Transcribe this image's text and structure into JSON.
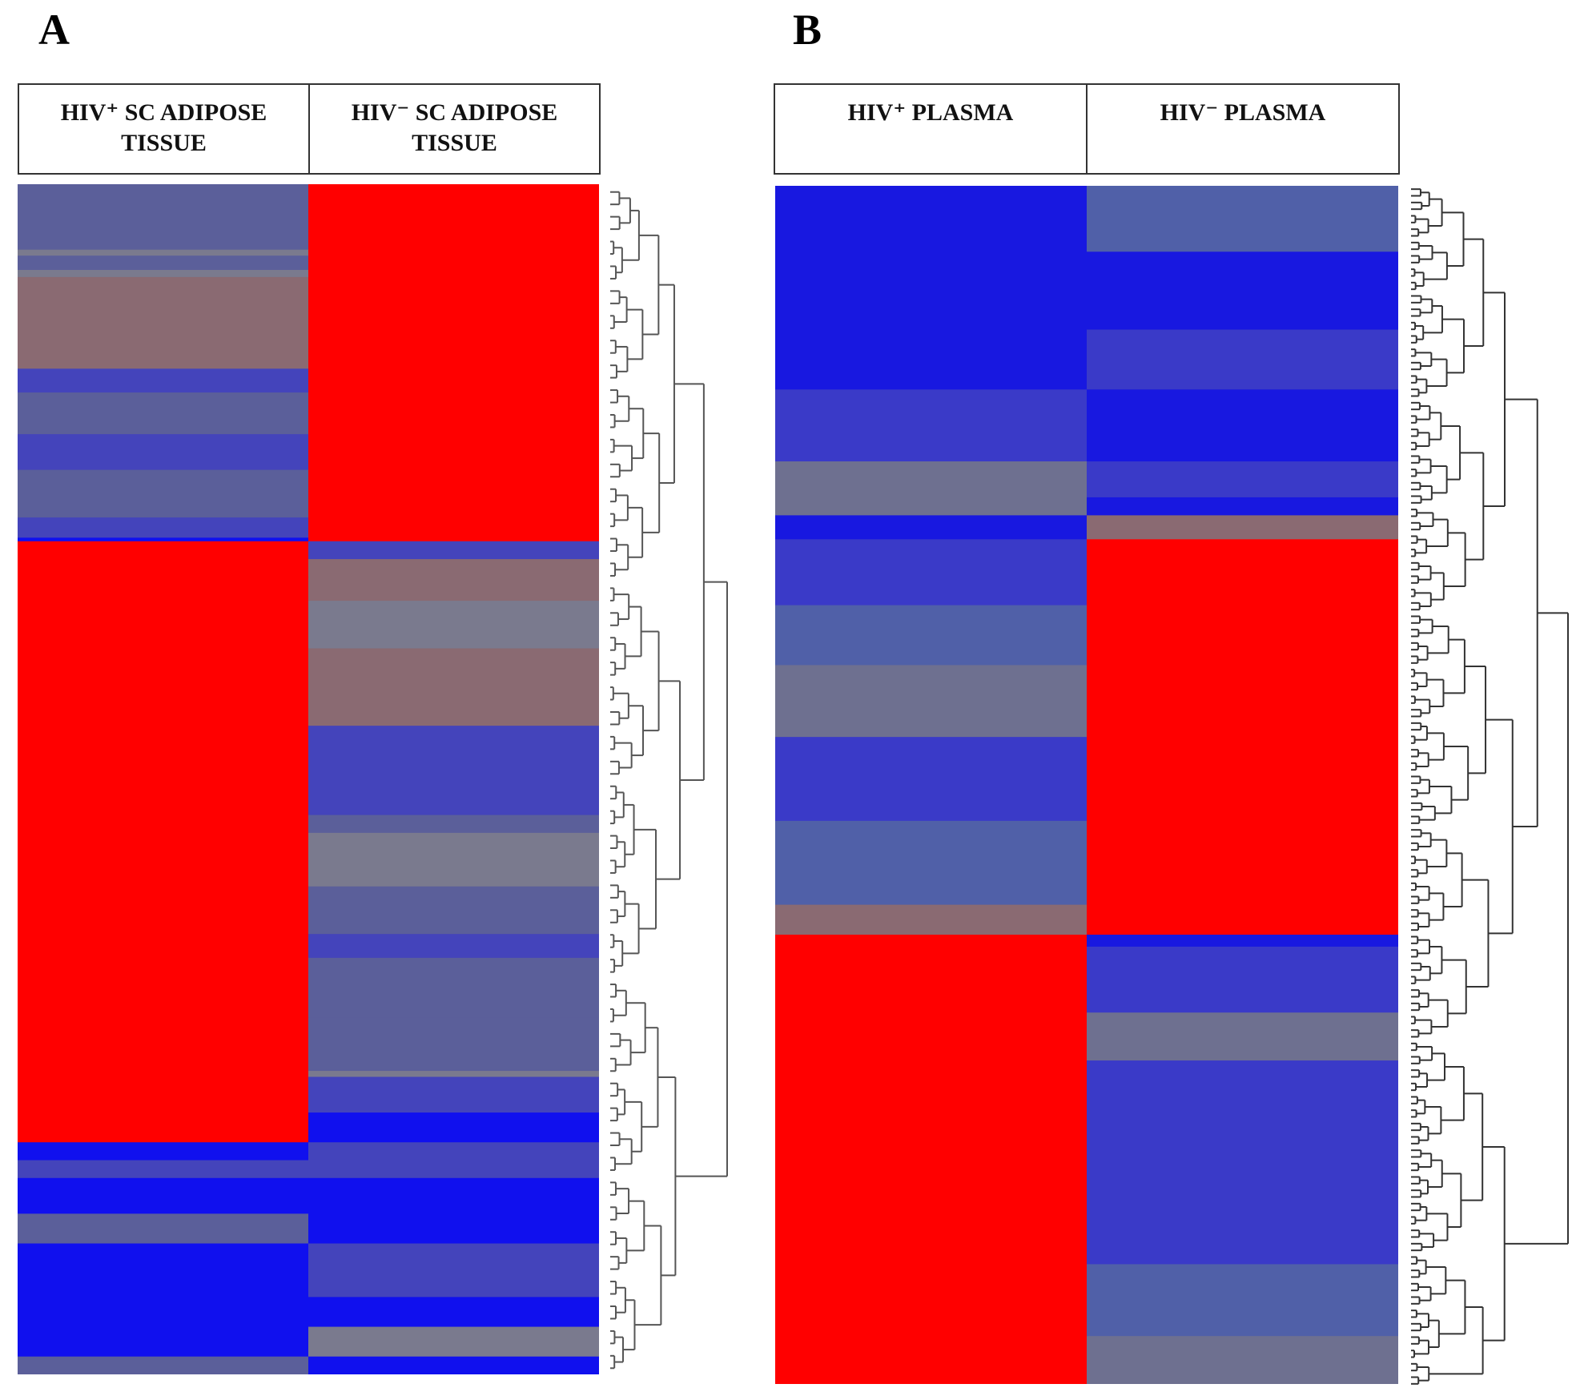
{
  "chart_data": [
    {
      "type": "heatmap",
      "panel": "A",
      "columns": [
        {
          "label_lines": [
            "HIV⁺ SC ADIPOSE",
            "TISSUE"
          ]
        },
        {
          "label_lines": [
            "HIV⁻ SC ADIPOSE",
            "TISSUE"
          ]
        }
      ],
      "colors": {
        "high": "#ff0000",
        "low": "#1010ee",
        "mid_blue": "#4444bb",
        "slate": "#5b5f9a",
        "gray": "#7a7a8e",
        "mauve": "#8a6a72"
      },
      "row_blocks": [
        {
          "start": 0.0,
          "end": 0.055,
          "values": [
            "slate",
            "high"
          ]
        },
        {
          "start": 0.055,
          "end": 0.06,
          "values": [
            "gray",
            "high"
          ]
        },
        {
          "start": 0.06,
          "end": 0.072,
          "values": [
            "slate",
            "high"
          ]
        },
        {
          "start": 0.072,
          "end": 0.078,
          "values": [
            "gray",
            "high"
          ]
        },
        {
          "start": 0.078,
          "end": 0.155,
          "values": [
            "mauve",
            "high"
          ]
        },
        {
          "start": 0.155,
          "end": 0.175,
          "values": [
            "mid_blue",
            "high"
          ]
        },
        {
          "start": 0.175,
          "end": 0.21,
          "values": [
            "slate",
            "high"
          ]
        },
        {
          "start": 0.21,
          "end": 0.24,
          "values": [
            "mid_blue",
            "high"
          ]
        },
        {
          "start": 0.24,
          "end": 0.28,
          "values": [
            "slate",
            "high"
          ]
        },
        {
          "start": 0.28,
          "end": 0.297,
          "values": [
            "mid_blue",
            "high"
          ]
        },
        {
          "start": 0.297,
          "end": 0.3,
          "values": [
            "low",
            "high"
          ]
        },
        {
          "start": 0.3,
          "end": 0.315,
          "values": [
            "high",
            "mid_blue"
          ]
        },
        {
          "start": 0.315,
          "end": 0.33,
          "values": [
            "high",
            "mauve"
          ]
        },
        {
          "start": 0.33,
          "end": 0.35,
          "values": [
            "high",
            "mauve"
          ]
        },
        {
          "start": 0.35,
          "end": 0.39,
          "values": [
            "high",
            "gray"
          ]
        },
        {
          "start": 0.39,
          "end": 0.455,
          "values": [
            "high",
            "mauve"
          ]
        },
        {
          "start": 0.455,
          "end": 0.53,
          "values": [
            "high",
            "mid_blue"
          ]
        },
        {
          "start": 0.53,
          "end": 0.545,
          "values": [
            "high",
            "slate"
          ]
        },
        {
          "start": 0.545,
          "end": 0.59,
          "values": [
            "high",
            "gray"
          ]
        },
        {
          "start": 0.59,
          "end": 0.63,
          "values": [
            "high",
            "slate"
          ]
        },
        {
          "start": 0.63,
          "end": 0.65,
          "values": [
            "high",
            "mid_blue"
          ]
        },
        {
          "start": 0.65,
          "end": 0.7,
          "values": [
            "high",
            "slate"
          ]
        },
        {
          "start": 0.7,
          "end": 0.745,
          "values": [
            "high",
            "slate"
          ]
        },
        {
          "start": 0.745,
          "end": 0.75,
          "values": [
            "high",
            "gray"
          ]
        },
        {
          "start": 0.75,
          "end": 0.78,
          "values": [
            "high",
            "mid_blue"
          ]
        },
        {
          "start": 0.78,
          "end": 0.805,
          "values": [
            "high",
            "low"
          ]
        },
        {
          "start": 0.805,
          "end": 0.82,
          "values": [
            "low",
            "mid_blue"
          ]
        },
        {
          "start": 0.82,
          "end": 0.835,
          "values": [
            "mid_blue",
            "mid_blue"
          ]
        },
        {
          "start": 0.835,
          "end": 0.865,
          "values": [
            "low",
            "low"
          ]
        },
        {
          "start": 0.865,
          "end": 0.89,
          "values": [
            "slate",
            "low"
          ]
        },
        {
          "start": 0.89,
          "end": 0.935,
          "values": [
            "low",
            "mid_blue"
          ]
        },
        {
          "start": 0.935,
          "end": 0.96,
          "values": [
            "low",
            "low"
          ]
        },
        {
          "start": 0.96,
          "end": 0.985,
          "values": [
            "low",
            "gray"
          ]
        },
        {
          "start": 0.985,
          "end": 1.0,
          "values": [
            "slate",
            "low"
          ]
        }
      ]
    },
    {
      "type": "heatmap",
      "panel": "B",
      "columns": [
        {
          "label_lines": [
            "HIV⁺ PLASMA"
          ]
        },
        {
          "label_lines": [
            "HIV⁻ PLASMA"
          ]
        }
      ],
      "colors": {
        "high": "#ff0000",
        "low": "#1818e0",
        "mid_blue": "#3a3ac8",
        "slate": "#5060a8",
        "gray": "#6e7090",
        "mauve": "#8a6a72"
      },
      "row_blocks": [
        {
          "start": 0.0,
          "end": 0.055,
          "values": [
            "low",
            "slate"
          ]
        },
        {
          "start": 0.055,
          "end": 0.12,
          "values": [
            "low",
            "low"
          ]
        },
        {
          "start": 0.12,
          "end": 0.17,
          "values": [
            "low",
            "mid_blue"
          ]
        },
        {
          "start": 0.17,
          "end": 0.23,
          "values": [
            "mid_blue",
            "low"
          ]
        },
        {
          "start": 0.23,
          "end": 0.26,
          "values": [
            "gray",
            "mid_blue"
          ]
        },
        {
          "start": 0.26,
          "end": 0.275,
          "values": [
            "gray",
            "low"
          ]
        },
        {
          "start": 0.275,
          "end": 0.295,
          "values": [
            "low",
            "mauve"
          ]
        },
        {
          "start": 0.295,
          "end": 0.35,
          "values": [
            "mid_blue",
            "high"
          ]
        },
        {
          "start": 0.35,
          "end": 0.4,
          "values": [
            "slate",
            "high"
          ]
        },
        {
          "start": 0.4,
          "end": 0.46,
          "values": [
            "gray",
            "high"
          ]
        },
        {
          "start": 0.46,
          "end": 0.53,
          "values": [
            "mid_blue",
            "high"
          ]
        },
        {
          "start": 0.53,
          "end": 0.6,
          "values": [
            "slate",
            "high"
          ]
        },
        {
          "start": 0.6,
          "end": 0.625,
          "values": [
            "mauve",
            "high"
          ]
        },
        {
          "start": 0.625,
          "end": 0.635,
          "values": [
            "high",
            "low"
          ]
        },
        {
          "start": 0.635,
          "end": 0.69,
          "values": [
            "high",
            "mid_blue"
          ]
        },
        {
          "start": 0.69,
          "end": 0.73,
          "values": [
            "high",
            "gray"
          ]
        },
        {
          "start": 0.73,
          "end": 0.9,
          "values": [
            "high",
            "mid_blue"
          ]
        },
        {
          "start": 0.9,
          "end": 0.96,
          "values": [
            "high",
            "slate"
          ]
        },
        {
          "start": 0.96,
          "end": 1.0,
          "values": [
            "high",
            "gray"
          ]
        }
      ]
    }
  ],
  "panels": {
    "A": {
      "letter": "A"
    },
    "B": {
      "letter": "B"
    }
  }
}
